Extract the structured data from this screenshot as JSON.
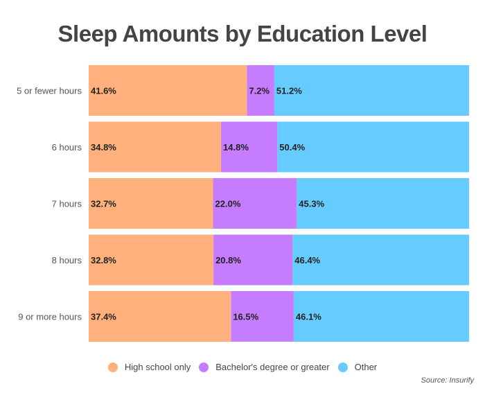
{
  "chart_data": {
    "type": "bar",
    "orientation": "horizontal",
    "stacked": true,
    "title": "Sleep Amounts by Education Level",
    "categories": [
      "5 or fewer hours",
      "6 hours",
      "7 hours",
      "8 hours",
      "9 or more hours"
    ],
    "series": [
      {
        "name": "High school only",
        "color": "#FFB07C",
        "values": [
          41.6,
          34.8,
          32.7,
          32.8,
          37.4
        ]
      },
      {
        "name": "Bachelor's degree or greater",
        "color": "#C67CFF",
        "values": [
          7.2,
          14.8,
          22.0,
          20.8,
          16.5
        ]
      },
      {
        "name": "Other",
        "color": "#66CCFF",
        "values": [
          51.2,
          50.4,
          45.3,
          46.4,
          46.1
        ]
      }
    ],
    "value_suffix": "%",
    "xlim": [
      0,
      100
    ],
    "grid": false,
    "legend_position": "bottom",
    "source": "Source: Insurify"
  }
}
